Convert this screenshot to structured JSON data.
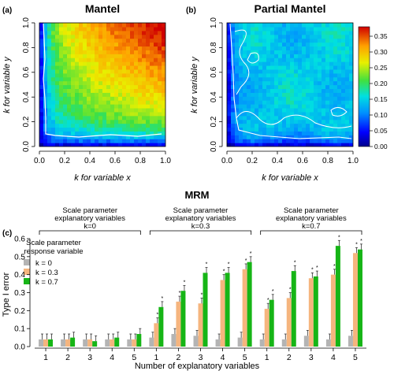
{
  "panels": {
    "a_tag": "(a)",
    "b_tag": "(b)",
    "c_tag": "(c)",
    "mantel_title": "Mantel",
    "partial_title": "Partial Mantel",
    "xlabel": "k for variable x",
    "ylabel": "k for variable y",
    "axis_ticks": [
      "0.0",
      "0.2",
      "0.4",
      "0.6",
      "0.8",
      "1.0"
    ]
  },
  "colorbar": {
    "ticks": [
      "0.00",
      "0.05",
      "0.10",
      "0.15",
      "0.20",
      "0.25",
      "0.30",
      "0.35"
    ],
    "min": 0.0,
    "max": 0.38
  },
  "mrm": {
    "title": "MRM",
    "group_header": "Scale parameter explanatory variables",
    "group_header_line1": "Scale parameter",
    "group_header_line2": "explanatory variables",
    "group_k": [
      "k=0",
      "k=0.3",
      "k=0.7"
    ],
    "legend_title_line1": "Scale parameter",
    "legend_title_line2": "response variable",
    "legend_labels": [
      "k = 0",
      "k = 0.3",
      "k = 0.7"
    ],
    "ylabel": "Type I error",
    "xlabel": "Number of explanatory variables",
    "yticks": [
      "0.0",
      "0.1",
      "0.2",
      "0.3",
      "0.4",
      "0.5",
      "0.6"
    ],
    "colors": [
      "#b4b4b4",
      "#f5b57e",
      "#16b516"
    ]
  },
  "chart_data": [
    {
      "type": "heatmap",
      "title": "Mantel",
      "xlabel": "k for variable x",
      "ylabel": "k for variable y",
      "xlim": [
        0,
        1
      ],
      "ylim": [
        0,
        1
      ],
      "zlim": [
        0,
        0.38
      ],
      "description_values": "Type I error low (~0.05) near k=0 on either axis, rising to ~0.30-0.35 for high k on both axes"
    },
    {
      "type": "heatmap",
      "title": "Partial Mantel",
      "xlabel": "k for variable x",
      "ylabel": "k for variable y",
      "xlim": [
        0,
        1
      ],
      "ylim": [
        0,
        1
      ],
      "zlim": [
        0,
        0.38
      ],
      "description_values": "Type I error low (~0.05) near k=0, ~0.10-0.20 elsewhere"
    },
    {
      "type": "bar",
      "title": "MRM",
      "xlabel": "Number of explanatory variables",
      "ylabel": "Type I error",
      "ylim": [
        0,
        0.6
      ],
      "groups": [
        "k=0",
        "k=0.3",
        "k=0.7"
      ],
      "categories": [
        "1",
        "2",
        "3",
        "4",
        "5"
      ],
      "series": [
        {
          "name": "k = 0",
          "values": [
            [
              0.04,
              0.04,
              0.04,
              0.04,
              0.04
            ],
            [
              0.05,
              0.07,
              0.06,
              0.04,
              0.05
            ],
            [
              0.04,
              0.04,
              0.06,
              0.04,
              0.06
            ]
          ]
        },
        {
          "name": "k = 0.3",
          "values": [
            [
              0.04,
              0.04,
              0.04,
              0.04,
              0.04
            ],
            [
              0.13,
              0.25,
              0.24,
              0.37,
              0.43
            ],
            [
              0.21,
              0.27,
              0.38,
              0.4,
              0.52
            ]
          ]
        },
        {
          "name": "k = 0.7",
          "values": [
            [
              0.04,
              0.05,
              0.03,
              0.05,
              0.07
            ],
            [
              0.22,
              0.31,
              0.41,
              0.41,
              0.47
            ],
            [
              0.26,
              0.42,
              0.39,
              0.56,
              0.54
            ]
          ]
        }
      ],
      "significant_marker": "*"
    }
  ]
}
